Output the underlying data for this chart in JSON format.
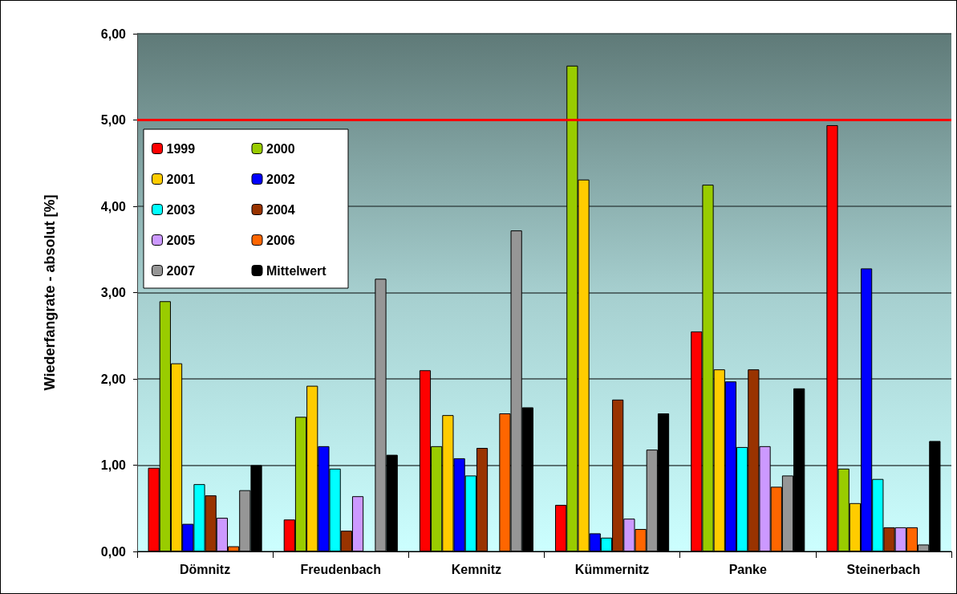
{
  "chart_data": {
    "type": "bar",
    "ylabel": "Wiederfangrate - absolut [%]",
    "categories": [
      "Dömnitz",
      "Freudenbach",
      "Kemnitz",
      "Kümmernitz",
      "Panke",
      "Steinerbach"
    ],
    "series": [
      {
        "name": "1999",
        "color": "#ff0000",
        "values": [
          0.97,
          0.37,
          2.1,
          0.54,
          2.55,
          4.94
        ]
      },
      {
        "name": "2000",
        "color": "#99cc00",
        "values": [
          2.9,
          1.56,
          1.22,
          5.63,
          4.25,
          0.96
        ]
      },
      {
        "name": "2001",
        "color": "#ffcc00",
        "values": [
          2.18,
          1.92,
          1.58,
          4.31,
          2.11,
          0.56
        ]
      },
      {
        "name": "2002",
        "color": "#0000ff",
        "values": [
          0.32,
          1.22,
          1.08,
          0.21,
          1.97,
          3.28
        ]
      },
      {
        "name": "2003",
        "color": "#00ffff",
        "values": [
          0.78,
          0.96,
          0.88,
          0.16,
          1.21,
          0.84
        ]
      },
      {
        "name": "2004",
        "color": "#993300",
        "values": [
          0.65,
          0.24,
          1.2,
          1.76,
          2.11,
          0.28
        ]
      },
      {
        "name": "2005",
        "color": "#cc99ff",
        "values": [
          0.39,
          0.64,
          null,
          0.38,
          1.22,
          0.28
        ]
      },
      {
        "name": "2006",
        "color": "#ff6600",
        "values": [
          0.06,
          null,
          1.6,
          0.26,
          0.75,
          0.28
        ]
      },
      {
        "name": "2007",
        "color": "#969696",
        "values": [
          0.71,
          3.16,
          3.72,
          1.18,
          0.88,
          0.08
        ]
      },
      {
        "name": "Mittelwert",
        "color": "#000000",
        "values": [
          1.0,
          1.12,
          1.67,
          1.6,
          1.89,
          1.28
        ]
      }
    ],
    "ylim": [
      0,
      6
    ],
    "yticks": [
      {
        "value": 0,
        "label": "0,00"
      },
      {
        "value": 1,
        "label": "1,00"
      },
      {
        "value": 2,
        "label": "2,00"
      },
      {
        "value": 3,
        "label": "3,00"
      },
      {
        "value": 4,
        "label": "4,00"
      },
      {
        "value": 5,
        "label": "5,00"
      },
      {
        "value": 6,
        "label": "6,00"
      }
    ],
    "ref_lines": [
      {
        "axis": "y",
        "value": 5,
        "color": "#ff0000",
        "line_style": "solid"
      }
    ],
    "grid": "y",
    "legend": "top left"
  }
}
